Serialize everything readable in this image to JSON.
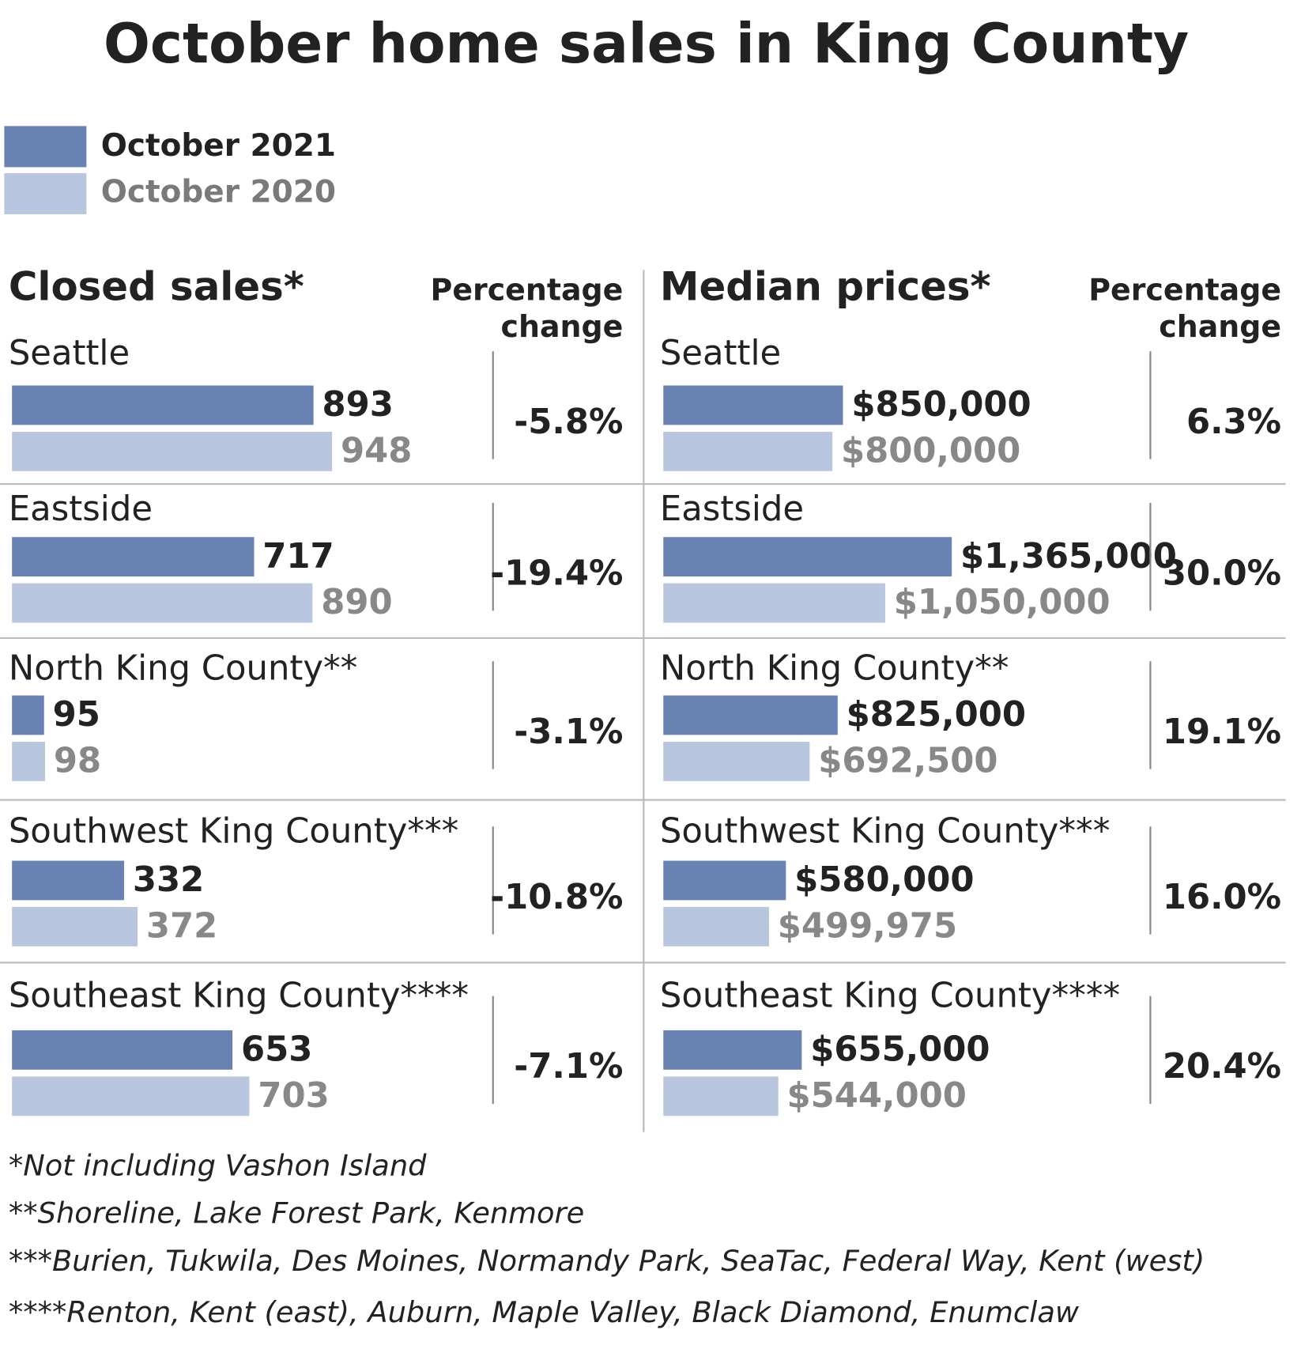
{
  "title": "October home sales in King County",
  "notes": [
    "*Not including Vashon Island",
    "**Shoreline, Lake Forest Park, Kenmore",
    "***Burien, Tukwila, Des Moines, Normandy Park, SeaTac, Federal Way, Kent (west)",
    "****Renton, Kent (east), Auburn, Maple Valley, Black Diamond, Enumclaw"
  ],
  "chart_data": [
    {
      "type": "bar",
      "title": "Closed sales*",
      "categories": [
        "Seattle",
        "Eastside",
        "North King County**",
        "Southwest King County***",
        "Southeast King County****"
      ],
      "series": [
        {
          "name": "October 2021",
          "color": "#6882b4",
          "values": [
            893,
            717,
            95,
            332,
            653
          ]
        },
        {
          "name": "October 2020",
          "color": "#b9c6e0",
          "values": [
            948,
            890,
            98,
            372,
            703
          ]
        }
      ],
      "change": {
        "title": "Percentage change",
        "values": [
          -5.8,
          -19.4,
          -3.1,
          -10.8,
          -7.1
        ],
        "value_labels": [
          "-5.8%",
          "-19.4%",
          "-3.1%",
          "-10.8%",
          "-7.1%"
        ]
      }
    },
    {
      "type": "bar",
      "title": "Median prices*",
      "categories": [
        "Seattle",
        "Eastside",
        "North King County**",
        "Southwest King County***",
        "Southeast King County****"
      ],
      "series": [
        {
          "color": "#6882b4",
          "values": [
            850000,
            1365000,
            825000,
            580000,
            655000
          ],
          "value_labels": [
            "$850,000",
            "$1,365,000",
            "$825,000",
            "$580,000",
            "$655,000"
          ]
        },
        {
          "color": "#b9c6e0",
          "values": [
            800000,
            1050000,
            692500,
            499975,
            544000
          ],
          "value_labels": [
            "$800,000",
            "$1,050,000",
            "$692,500",
            "$499,975",
            "$544,000"
          ]
        }
      ],
      "change": {
        "title": "Percentage change",
        "values": [
          6.3,
          30.0,
          19.1,
          16.0,
          20.4
        ],
        "value_labels": [
          "6.3%",
          "30.0%",
          "19.1%",
          "16.0%",
          "20.4%"
        ]
      }
    }
  ]
}
